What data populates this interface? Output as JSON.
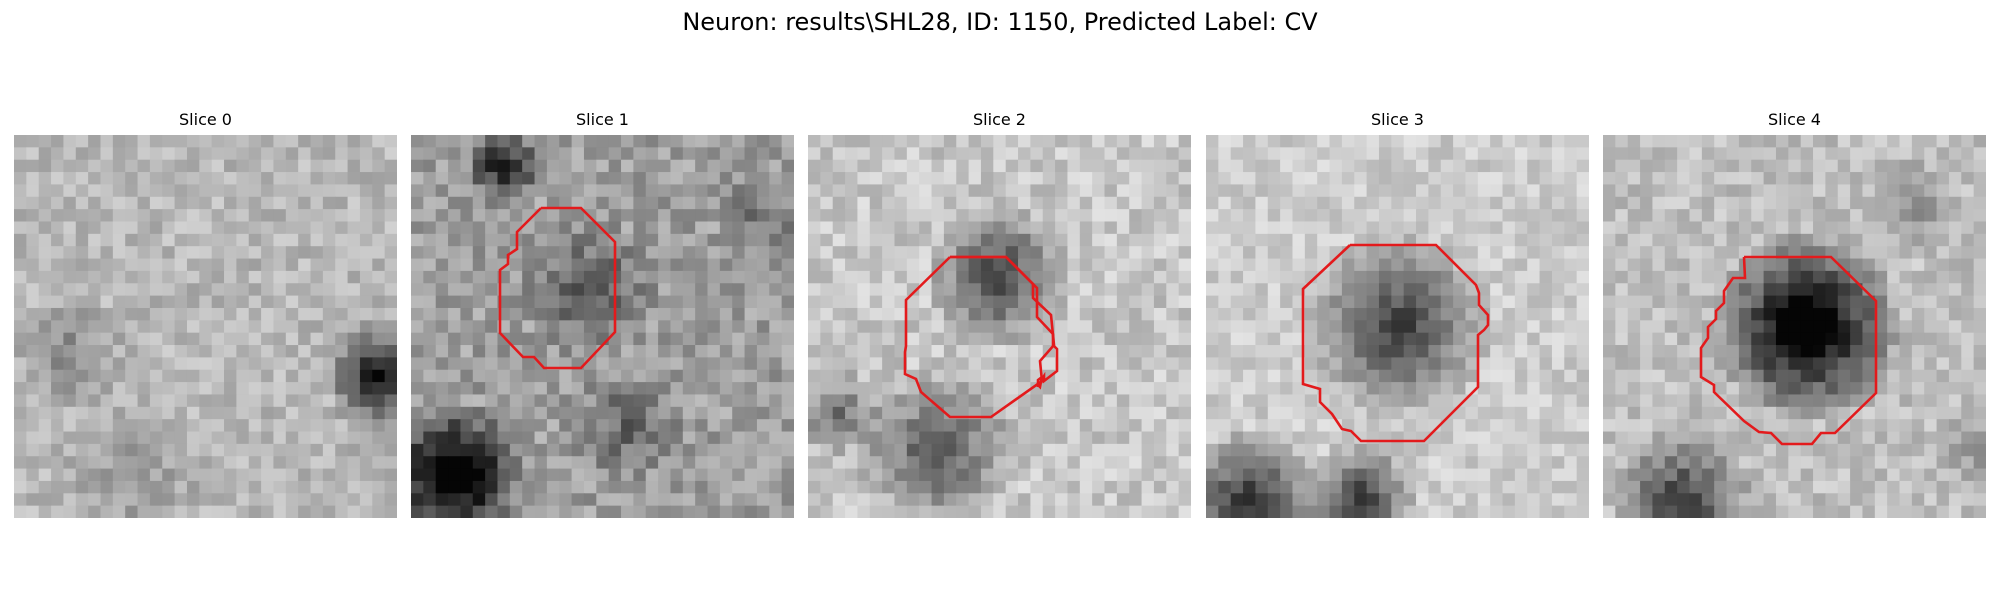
{
  "figure_title": "Neuron: results\\SHL28, ID: 1150, Predicted Label: CV",
  "panels": [
    {
      "title": "Slice 0",
      "has_outline": false
    },
    {
      "title": "Slice 1",
      "has_outline": true
    },
    {
      "title": "Slice 2",
      "has_outline": true
    },
    {
      "title": "Slice 3",
      "has_outline": true
    },
    {
      "title": "Slice 4",
      "has_outline": true
    }
  ],
  "colors": {
    "outline": "#e31a1c",
    "colormap": "gray"
  }
}
